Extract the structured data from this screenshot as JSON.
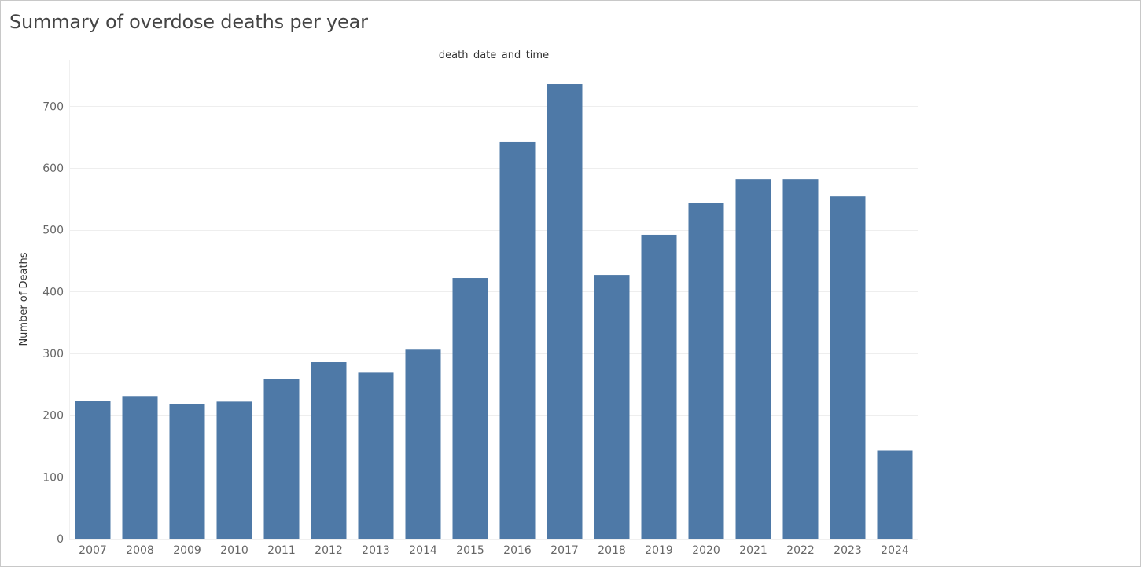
{
  "page": {
    "title": "Summary of overdose deaths  per year"
  },
  "chart_data": {
    "type": "bar",
    "title": "Summary of overdose deaths  per year",
    "xlabel": "death_date_and_time",
    "ylabel": "Number of Deaths",
    "categories": [
      "2007",
      "2008",
      "2009",
      "2010",
      "2011",
      "2012",
      "2013",
      "2014",
      "2015",
      "2016",
      "2017",
      "2018",
      "2019",
      "2020",
      "2021",
      "2022",
      "2023",
      "2024"
    ],
    "values": [
      223,
      231,
      218,
      222,
      259,
      286,
      269,
      306,
      422,
      642,
      736,
      427,
      492,
      543,
      582,
      582,
      554,
      143
    ],
    "ylim": [
      0,
      775
    ],
    "yticks": [
      0,
      100,
      200,
      300,
      400,
      500,
      600,
      700
    ],
    "grid": true,
    "bar_color": "#4e79a7",
    "grid_color": "#eeeeee"
  }
}
